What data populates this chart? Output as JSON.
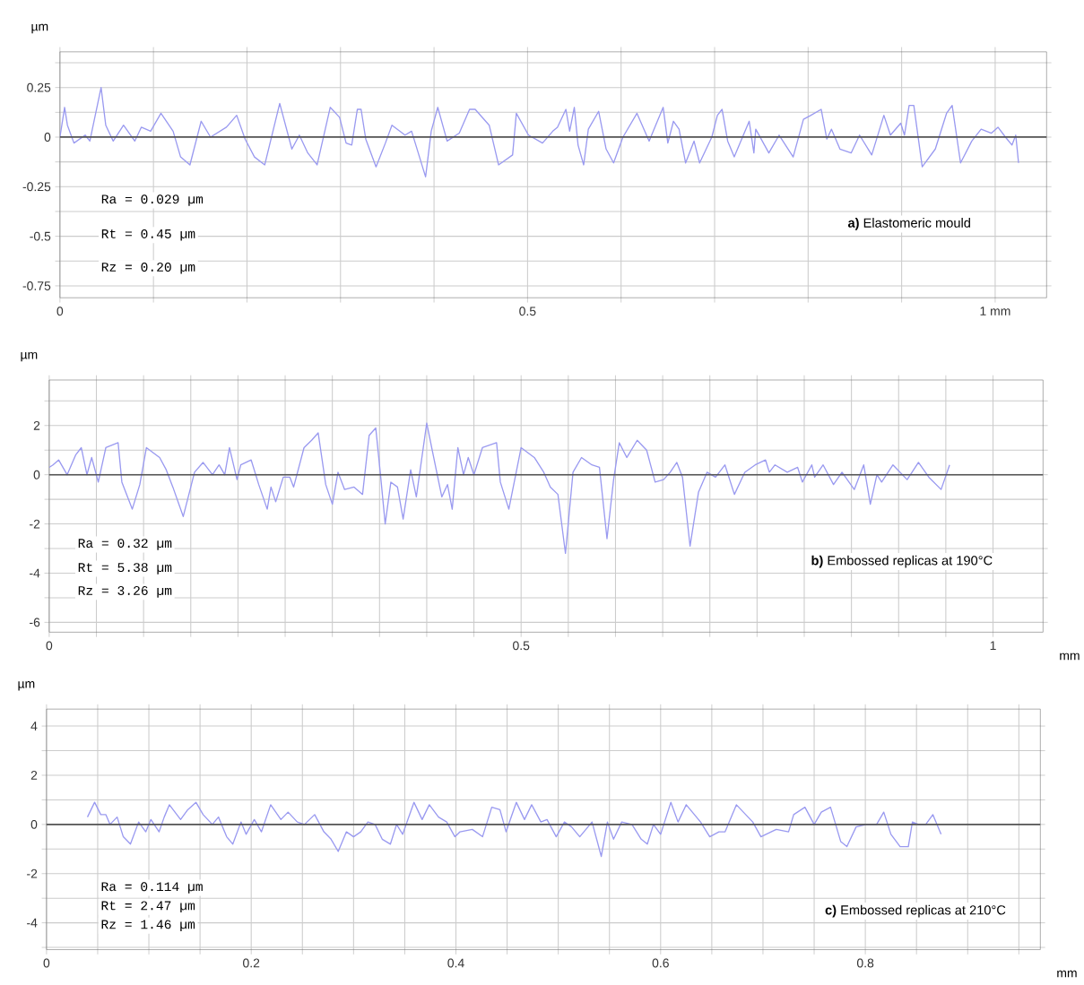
{
  "chart_data": [
    {
      "type": "line",
      "ylabel": "µm",
      "xlim": [
        0,
        1.055
      ],
      "ylim": [
        -0.81,
        0.43
      ],
      "grid": true,
      "line_style": "solid",
      "xticks": [
        0,
        {
          "value": 0.1,
          "label": null
        },
        {
          "value": 0.2,
          "label": null
        },
        {
          "value": 0.3,
          "label": null
        },
        {
          "value": 0.4,
          "label": null
        },
        0.5,
        {
          "value": 0.6,
          "label": null
        },
        {
          "value": 0.7,
          "label": null
        },
        {
          "value": 0.8,
          "label": null
        },
        {
          "value": 0.9,
          "label": null
        },
        {
          "value": 1,
          "label": "1 mm"
        }
      ],
      "yticks": [
        -0.75,
        {
          "value": -0.625,
          "label": null
        },
        -0.5,
        {
          "value": -0.375,
          "label": null
        },
        -0.25,
        {
          "value": -0.125,
          "label": null
        },
        0,
        {
          "value": 0.125,
          "label": null
        },
        0.25,
        {
          "value": 0.375,
          "label": null
        }
      ],
      "ref_lines": [
        {
          "axis": "y",
          "value": 0,
          "color": "#555555"
        }
      ],
      "annotations": [
        "Ra = 0.029 µm",
        "Rt = 0.45 µm",
        "Rz = 0.20 µm",
        "**a)** Elastomeric mould"
      ],
      "series": [
        {
          "color": "#9a9af0",
          "x": [
            0,
            0.005,
            0.008,
            0.015,
            0.027,
            0.032,
            0.044,
            0.049,
            0.057,
            0.068,
            0.08,
            0.087,
            0.097,
            0.108,
            0.121,
            0.129,
            0.139,
            0.151,
            0.161,
            0.178,
            0.189,
            0.198,
            0.208,
            0.219,
            0.235,
            0.248,
            0.256,
            0.265,
            0.275,
            0.289,
            0.299,
            0.306,
            0.312,
            0.318,
            0.322,
            0.327,
            0.338,
            0.348,
            0.355,
            0.369,
            0.376,
            0.389,
            0.391,
            0.397,
            0.404,
            0.414,
            0.427,
            0.438,
            0.444,
            0.459,
            0.469,
            0.484,
            0.488,
            0.501,
            0.516,
            0.527,
            0.532,
            0.541,
            0.545,
            0.55,
            0.554,
            0.56,
            0.565,
            0.576,
            0.584,
            0.592,
            0.602,
            0.617,
            0.63,
            0.637,
            0.645,
            0.65,
            0.656,
            0.662,
            0.669,
            0.678,
            0.684,
            0.697,
            0.703,
            0.708,
            0.714,
            0.721,
            0.737,
            0.742,
            0.744,
            0.758,
            0.769,
            0.784,
            0.795,
            0.803,
            0.814,
            0.82,
            0.825,
            0.834,
            0.846,
            0.855,
            0.868,
            0.881,
            0.888,
            0.899,
            0.903,
            0.908,
            0.913,
            0.922,
            0.936,
            0.948,
            0.954,
            0.963,
            0.975,
            0.985,
            0.996,
            1.003,
            1.011,
            1.018,
            1.022,
            1.025
          ],
          "values": [
            0,
            0.15,
            0.06,
            -0.03,
            0.01,
            -0.02,
            0.25,
            0.06,
            -0.02,
            0.06,
            -0.02,
            0.05,
            0.03,
            0.12,
            0.03,
            -0.1,
            -0.14,
            0.08,
            0,
            0.05,
            0.11,
            -0.01,
            -0.1,
            -0.14,
            0.17,
            -0.06,
            0.01,
            -0.08,
            -0.14,
            0.15,
            0.1,
            -0.03,
            -0.04,
            0.14,
            0.14,
            -0.01,
            -0.15,
            -0.03,
            0.06,
            0.01,
            0.03,
            -0.17,
            -0.2,
            0.03,
            0.15,
            -0.02,
            0.02,
            0.14,
            0.14,
            0.06,
            -0.14,
            -0.09,
            0.12,
            0.01,
            -0.03,
            0.03,
            0.05,
            0.14,
            0.03,
            0.15,
            -0.04,
            -0.14,
            0.04,
            0.13,
            -0.06,
            -0.13,
            0,
            0.12,
            -0.02,
            0.06,
            0.15,
            -0.03,
            0.08,
            0.04,
            -0.13,
            -0.02,
            -0.13,
            0,
            0.11,
            0.14,
            -0.02,
            -0.1,
            0.08,
            -0.08,
            0.04,
            -0.08,
            0.01,
            -0.1,
            0.09,
            0.11,
            0.14,
            -0.01,
            0.04,
            -0.06,
            -0.08,
            0.01,
            -0.09,
            0.11,
            0.01,
            0.07,
            0.01,
            0.16,
            0.16,
            -0.15,
            -0.06,
            0.12,
            0.16,
            -0.13,
            -0.02,
            0.04,
            0.02,
            0.05,
            0,
            -0.04,
            0.01,
            -0.13
          ]
        }
      ]
    },
    {
      "type": "line",
      "ylabel": "µm",
      "xlabel": "mm",
      "xlim": [
        0,
        1.053
      ],
      "ylim": [
        -6.4,
        3.85
      ],
      "grid": true,
      "line_style": "solid",
      "xticks": [
        0,
        {
          "value": 0.05,
          "label": null
        },
        {
          "value": 0.1,
          "label": null
        },
        {
          "value": 0.15,
          "label": null
        },
        {
          "value": 0.2,
          "label": null
        },
        {
          "value": 0.25,
          "label": null
        },
        {
          "value": 0.3,
          "label": null
        },
        {
          "value": 0.35,
          "label": null
        },
        {
          "value": 0.4,
          "label": null
        },
        {
          "value": 0.45,
          "label": null
        },
        0.5,
        {
          "value": 0.55,
          "label": null
        },
        {
          "value": 0.6,
          "label": null
        },
        {
          "value": 0.65,
          "label": null
        },
        {
          "value": 0.7,
          "label": null
        },
        {
          "value": 0.75,
          "label": null
        },
        {
          "value": 0.8,
          "label": null
        },
        {
          "value": 0.85,
          "label": null
        },
        {
          "value": 0.9,
          "label": null
        },
        {
          "value": 0.95,
          "label": null
        },
        1
      ],
      "yticks": [
        -6,
        {
          "value": -5,
          "label": null
        },
        -4,
        {
          "value": -3,
          "label": null
        },
        -2,
        {
          "value": -1,
          "label": null
        },
        0,
        {
          "value": 1,
          "label": null
        },
        2,
        {
          "value": 3,
          "label": null
        }
      ],
      "ref_lines": [
        {
          "axis": "y",
          "value": 0,
          "color": "#555555"
        }
      ],
      "annotations": [
        "Ra = 0.32 µm",
        "Rt = 5.38 µm",
        "Rz = 3.26 µm",
        "**b)** Embossed replicas at 190°C"
      ],
      "series": [
        {
          "color": "#9a9af0",
          "x": [
            0,
            0.004,
            0.01,
            0.019,
            0.028,
            0.034,
            0.04,
            0.045,
            0.052,
            0.06,
            0.073,
            0.077,
            0.088,
            0.096,
            0.103,
            0.117,
            0.124,
            0.131,
            0.142,
            0.15,
            0.154,
            0.163,
            0.173,
            0.18,
            0.186,
            0.191,
            0.199,
            0.203,
            0.214,
            0.222,
            0.231,
            0.235,
            0.24,
            0.248,
            0.255,
            0.259,
            0.27,
            0.278,
            0.285,
            0.293,
            0.3,
            0.306,
            0.313,
            0.323,
            0.332,
            0.339,
            0.346,
            0.351,
            0.356,
            0.362,
            0.369,
            0.375,
            0.383,
            0.389,
            0.4,
            0.409,
            0.416,
            0.422,
            0.427,
            0.433,
            0.439,
            0.444,
            0.45,
            0.459,
            0.474,
            0.478,
            0.487,
            0.5,
            0.514,
            0.524,
            0.531,
            0.539,
            0.547,
            0.555,
            0.564,
            0.575,
            0.583,
            0.591,
            0.598,
            0.604,
            0.612,
            0.623,
            0.633,
            0.642,
            0.651,
            0.658,
            0.665,
            0.671,
            0.679,
            0.688,
            0.697,
            0.706,
            0.716,
            0.726,
            0.737,
            0.748,
            0.759,
            0.763,
            0.769,
            0.782,
            0.793,
            0.798,
            0.808,
            0.811,
            0.82,
            0.831,
            0.84,
            0.853,
            0.863,
            0.87,
            0.877,
            0.882,
            0.894,
            0.909,
            0.921,
            0.932,
            0.945,
            0.954
          ],
          "values": [
            0.3,
            0.4,
            0.6,
            0,
            0.8,
            1.1,
            0,
            0.7,
            -0.3,
            1.1,
            1.3,
            -0.3,
            -1.4,
            -0.4,
            1.1,
            0.7,
            0.2,
            -0.5,
            -1.7,
            -0.5,
            0.1,
            0.5,
            0,
            0.4,
            0,
            1.1,
            -0.2,
            0.4,
            0.6,
            -0.4,
            -1.4,
            -0.5,
            -1.1,
            -0.1,
            -0.1,
            -0.5,
            1.1,
            1.4,
            1.7,
            -0.4,
            -1.2,
            0.1,
            -0.6,
            -0.5,
            -0.8,
            1.6,
            1.9,
            0,
            -2.0,
            -0.3,
            -0.5,
            -1.8,
            0.2,
            -0.9,
            2.1,
            0.4,
            -0.9,
            -0.4,
            -1.4,
            1.1,
            0,
            0.7,
            0,
            1.1,
            1.3,
            -0.3,
            -1.4,
            1.1,
            0.7,
            0.1,
            -0.5,
            -0.8,
            -3.2,
            0.1,
            0.7,
            0.4,
            0.3,
            -2.6,
            -0.2,
            1.3,
            0.7,
            1.4,
            1.0,
            -0.3,
            -0.2,
            0.1,
            0.5,
            -0.1,
            -2.9,
            -0.7,
            0.1,
            -0.1,
            0.4,
            -0.8,
            0.1,
            0.4,
            0.6,
            0.1,
            0.4,
            0.1,
            0.3,
            -0.3,
            0.4,
            -0.1,
            0.4,
            -0.4,
            0.1,
            -0.6,
            0.4,
            -1.2,
            0,
            -0.3,
            0.4,
            -0.2,
            0.5,
            -0.1,
            -0.6,
            0.4
          ]
        }
      ]
    },
    {
      "type": "line",
      "ylabel": "µm",
      "xlabel": "mm",
      "xlim": [
        0,
        0.971
      ],
      "ylim": [
        -5.09,
        4.69
      ],
      "grid": true,
      "line_style": "solid",
      "xticks": [
        0,
        {
          "value": 0.05,
          "label": null
        },
        {
          "value": 0.1,
          "label": null
        },
        {
          "value": 0.15,
          "label": null
        },
        0.2,
        {
          "value": 0.25,
          "label": null
        },
        {
          "value": 0.3,
          "label": null
        },
        {
          "value": 0.35,
          "label": null
        },
        0.4,
        {
          "value": 0.45,
          "label": null
        },
        {
          "value": 0.5,
          "label": null
        },
        {
          "value": 0.55,
          "label": null
        },
        0.6,
        {
          "value": 0.65,
          "label": null
        },
        {
          "value": 0.7,
          "label": null
        },
        {
          "value": 0.75,
          "label": null
        },
        0.8,
        {
          "value": 0.85,
          "label": null
        },
        {
          "value": 0.9,
          "label": null
        },
        {
          "value": 0.95,
          "label": null
        }
      ],
      "yticks": [
        {
          "value": -5,
          "label": null
        },
        -4,
        {
          "value": -3,
          "label": null
        },
        -2,
        {
          "value": -1,
          "label": null
        },
        0,
        {
          "value": 1,
          "label": null
        },
        2,
        {
          "value": 3,
          "label": null
        },
        4
      ],
      "ref_lines": [
        {
          "axis": "y",
          "value": 0,
          "color": "#555555"
        }
      ],
      "annotations": [
        "Ra = 0.114 µm",
        "Rt = 2.47 µm",
        "Rz = 1.46 µm",
        "**c)** Embossed replicas at 210°C"
      ],
      "series": [
        {
          "color": "#9a9af0",
          "x": [
            0.04,
            0.047,
            0.053,
            0.058,
            0.062,
            0.069,
            0.075,
            0.082,
            0.09,
            0.097,
            0.102,
            0.11,
            0.115,
            0.12,
            0.131,
            0.138,
            0.146,
            0.153,
            0.162,
            0.168,
            0.176,
            0.182,
            0.19,
            0.195,
            0.203,
            0.21,
            0.219,
            0.229,
            0.236,
            0.245,
            0.252,
            0.262,
            0.271,
            0.278,
            0.285,
            0.293,
            0.3,
            0.307,
            0.314,
            0.321,
            0.328,
            0.336,
            0.342,
            0.348,
            0.359,
            0.367,
            0.374,
            0.383,
            0.391,
            0.399,
            0.404,
            0.416,
            0.426,
            0.435,
            0.443,
            0.449,
            0.459,
            0.467,
            0.474,
            0.483,
            0.489,
            0.498,
            0.506,
            0.513,
            0.521,
            0.533,
            0.542,
            0.548,
            0.554,
            0.562,
            0.572,
            0.581,
            0.587,
            0.593,
            0.6,
            0.61,
            0.617,
            0.625,
            0.639,
            0.648,
            0.657,
            0.663,
            0.674,
            0.69,
            0.698,
            0.713,
            0.725,
            0.73,
            0.741,
            0.75,
            0.757,
            0.766,
            0.776,
            0.782,
            0.791,
            0.801,
            0.811,
            0.818,
            0.825,
            0.834,
            0.842,
            0.846,
            0.852,
            0.859,
            0.866,
            0.874
          ],
          "values": [
            0.3,
            0.9,
            0.4,
            0.4,
            0,
            0.3,
            -0.5,
            -0.8,
            0.1,
            -0.3,
            0.2,
            -0.3,
            0.3,
            0.8,
            0.2,
            0.6,
            0.9,
            0.4,
            0,
            0.3,
            -0.5,
            -0.8,
            0.1,
            -0.4,
            0.2,
            -0.3,
            0.8,
            0.2,
            0.5,
            0.1,
            0,
            0.4,
            -0.3,
            -0.6,
            -1.1,
            -0.3,
            -0.5,
            -0.3,
            0.1,
            0,
            -0.6,
            -0.8,
            0,
            -0.4,
            0.9,
            0.2,
            0.8,
            0.3,
            0.1,
            -0.5,
            -0.3,
            -0.2,
            -0.5,
            0.7,
            0.6,
            -0.3,
            0.9,
            0.2,
            0.8,
            0.1,
            0.2,
            -0.5,
            0.1,
            -0.1,
            -0.5,
            0.1,
            -1.3,
            0.1,
            -0.6,
            0.1,
            0,
            -0.6,
            -0.8,
            0,
            -0.4,
            0.9,
            0.1,
            0.8,
            0.1,
            -0.5,
            -0.3,
            -0.3,
            0.8,
            0.1,
            -0.5,
            -0.2,
            -0.3,
            0.4,
            0.7,
            0,
            0.5,
            0.7,
            -0.7,
            -0.9,
            -0.1,
            0,
            0,
            0.5,
            -0.4,
            -0.9,
            -0.9,
            0.1,
            0,
            0,
            0.4,
            -0.4
          ]
        }
      ]
    }
  ]
}
